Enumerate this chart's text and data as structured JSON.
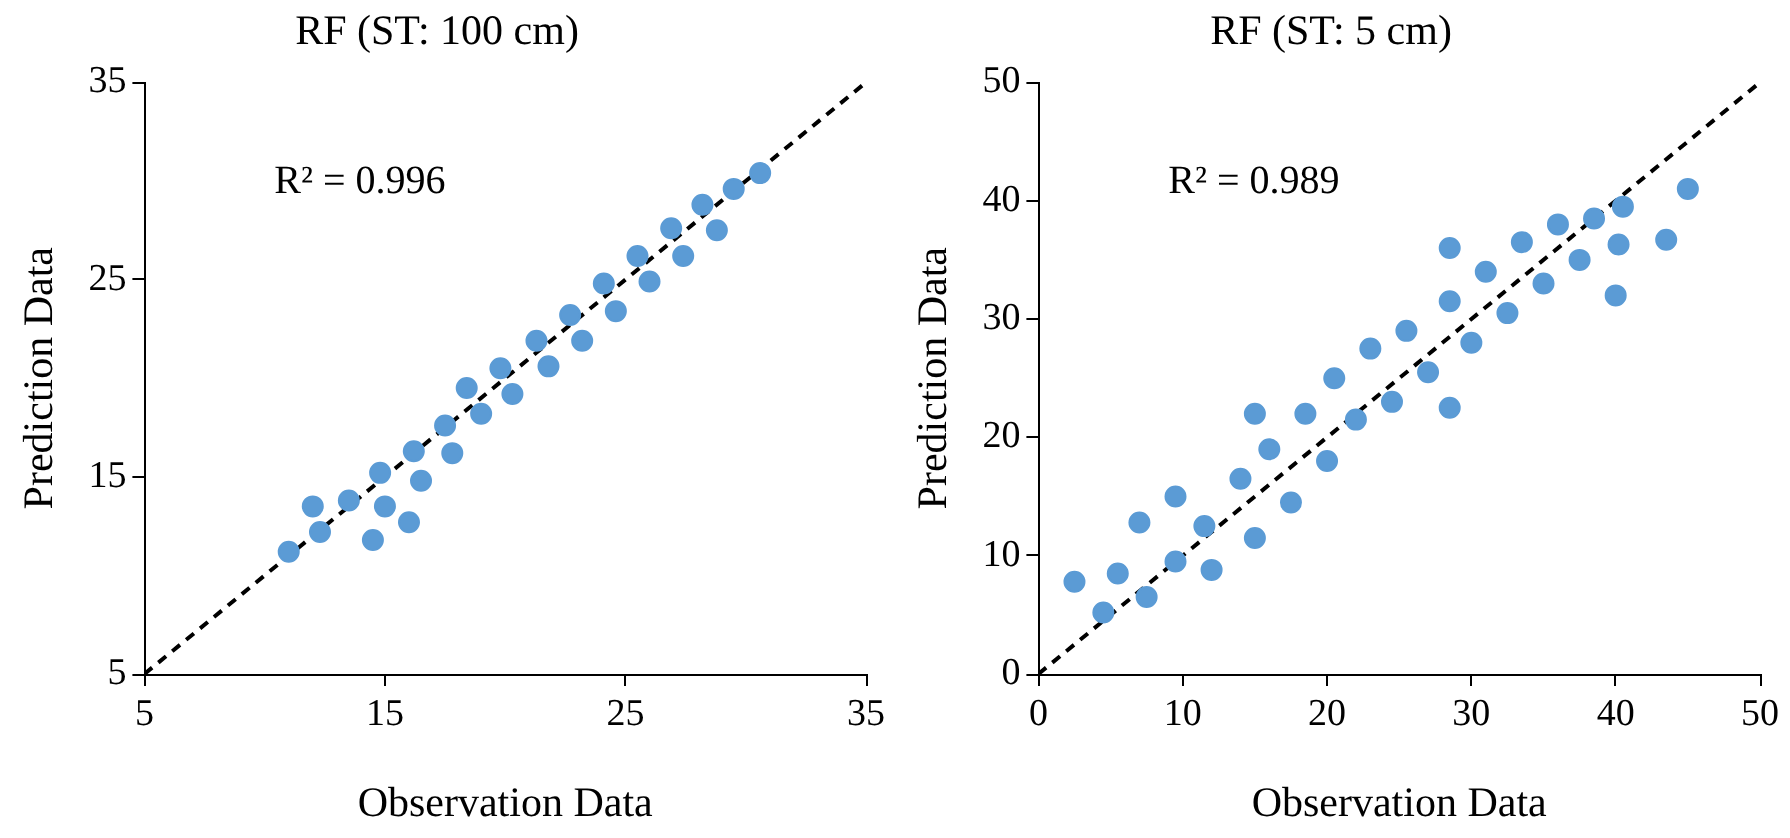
{
  "chart_data": [
    {
      "type": "scatter",
      "title": "RF (ST: 100 cm)",
      "xlabel": "Observation Data",
      "ylabel": "Prediction Data",
      "annotations": [
        "R² = 0.996"
      ],
      "marker": "circle",
      "grid": false,
      "legend": false,
      "xlim": [
        5,
        35
      ],
      "xticks": [
        5,
        15,
        25,
        35
      ],
      "ylim": [
        5,
        35
      ],
      "yticks": [
        5,
        15,
        25,
        35
      ],
      "series": [
        {
          "color": "#5b9bd5",
          "x": [
            11,
            12,
            12.3,
            13.5,
            14.5,
            14.8,
            15,
            16,
            16.2,
            16.5,
            17.5,
            17.8,
            18.4,
            19,
            19.8,
            20.3,
            21.3,
            21.8,
            22.7,
            23.2,
            24.1,
            24.6,
            25.5,
            26,
            26.9,
            27.4,
            28.2,
            28.8,
            29.5,
            30.6
          ],
          "values": [
            11.2,
            13.5,
            12.2,
            13.8,
            11.8,
            15.2,
            13.5,
            12.7,
            16.3,
            14.8,
            17.6,
            16.2,
            19.5,
            18.2,
            20.5,
            19.2,
            21.9,
            20.6,
            23.2,
            21.9,
            24.8,
            23.4,
            26.2,
            24.9,
            27.6,
            26.2,
            28.8,
            27.5,
            29.6,
            30.4
          ]
        },
        {
          "type": "line",
          "color": "#000000",
          "line_style": "dashed",
          "marker": "none",
          "x": [
            5,
            35
          ],
          "values": [
            5,
            35
          ]
        }
      ]
    },
    {
      "type": "scatter",
      "title": "RF (ST: 5 cm)",
      "xlabel": "Observation Data",
      "ylabel": "Prediction Data",
      "annotations": [
        "R² = 0.989"
      ],
      "marker": "circle",
      "grid": false,
      "legend": false,
      "xlim": [
        0,
        50
      ],
      "xticks": [
        0,
        10,
        20,
        30,
        40,
        50
      ],
      "ylim": [
        0,
        50
      ],
      "yticks": [
        0,
        10,
        20,
        30,
        40,
        50
      ],
      "series": [
        {
          "color": "#5b9bd5",
          "x": [
            2.5,
            4.5,
            5.5,
            7,
            7.5,
            9.5,
            9.5,
            11.5,
            12,
            14,
            15,
            15,
            16,
            17.5,
            18.5,
            20,
            20.5,
            22,
            23,
            24.5,
            25.5,
            27,
            28.5,
            28.5,
            28.5,
            30,
            31,
            32.5,
            33.5,
            35,
            36,
            37.5,
            38.5,
            40,
            40.2,
            40.5,
            43.5,
            45
          ],
          "values": [
            7.8,
            5.2,
            8.5,
            12.8,
            6.5,
            15,
            9.5,
            12.5,
            8.8,
            16.5,
            11.5,
            22,
            19,
            14.5,
            22,
            18,
            25,
            21.5,
            27.5,
            23,
            29,
            25.5,
            36,
            22.5,
            31.5,
            28,
            34,
            30.5,
            36.5,
            33,
            38,
            35,
            38.5,
            32,
            36.3,
            39.5,
            36.7,
            41
          ]
        },
        {
          "type": "line",
          "color": "#000000",
          "line_style": "dashed",
          "marker": "none",
          "x": [
            0,
            50
          ],
          "values": [
            0,
            50
          ]
        }
      ]
    }
  ]
}
